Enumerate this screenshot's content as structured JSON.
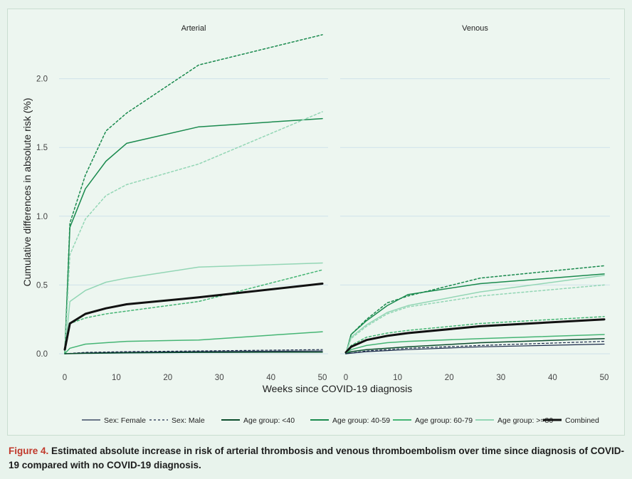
{
  "colors": {
    "background": "#edf6f0",
    "grid": "#cfe2ea",
    "female_male": "#1b2a4a",
    "age_lt40": "#0b4d2c",
    "age_40_59": "#1a8a4e",
    "age_60_79": "#45b574",
    "age_ge80": "#93d6b5",
    "combined": "#111111",
    "caption_label": "#c0392b"
  },
  "chart_data": {
    "type": "line",
    "ylabel": "Cumulative differences in absolute risk (%)",
    "xlabel": "Weeks since COVID-19 diagnosis",
    "xlim": [
      0,
      50
    ],
    "ylim": [
      0,
      2.35
    ],
    "grid": true,
    "legend_position": "bottom",
    "x_ticks": [
      "0",
      "10",
      "20",
      "30",
      "40",
      "50"
    ],
    "y_ticks": [
      "0.0",
      "0.5",
      "1.0",
      "1.5",
      "2.0"
    ],
    "legend": [
      {
        "label": "Sex: Female",
        "style": "solid",
        "color": "#1b2a4a",
        "width": 1.2
      },
      {
        "label": "Sex: Male",
        "style": "dotted",
        "color": "#1b2a4a",
        "width": 1.2
      },
      {
        "label": "Age group: <40",
        "style": "solid",
        "color": "#0b4d2c",
        "width": 2
      },
      {
        "label": "Age group: 40-59",
        "style": "solid",
        "color": "#1a8a4e",
        "width": 2
      },
      {
        "label": "Age group: 60-79",
        "style": "solid",
        "color": "#45b574",
        "width": 2
      },
      {
        "label": "Age group: >=80",
        "style": "solid",
        "color": "#93d6b5",
        "width": 2
      },
      {
        "label": "Combined",
        "style": "solid",
        "color": "#111111",
        "width": 3
      }
    ],
    "panels": [
      {
        "title": "Arterial",
        "series": [
          {
            "style": "dotted",
            "color": "#1a8a4e",
            "width": 1.5,
            "x": [
              0,
              1,
              4,
              8,
              12,
              26,
              50
            ],
            "y": [
              0,
              0.95,
              1.3,
              1.62,
              1.75,
              2.1,
              2.32
            ]
          },
          {
            "style": "solid",
            "color": "#1a8a4e",
            "width": 1.5,
            "x": [
              0,
              1,
              4,
              8,
              12,
              26,
              50
            ],
            "y": [
              0,
              0.92,
              1.2,
              1.4,
              1.53,
              1.65,
              1.71
            ]
          },
          {
            "style": "dotted",
            "color": "#93d6b5",
            "width": 1.5,
            "x": [
              0,
              1,
              4,
              8,
              12,
              26,
              50
            ],
            "y": [
              0,
              0.72,
              0.98,
              1.15,
              1.23,
              1.38,
              1.76
            ]
          },
          {
            "style": "solid",
            "color": "#93d6b5",
            "width": 1.5,
            "x": [
              0,
              1,
              4,
              8,
              12,
              26,
              50
            ],
            "y": [
              0,
              0.38,
              0.46,
              0.52,
              0.55,
              0.63,
              0.66
            ]
          },
          {
            "style": "dotted",
            "color": "#45b574",
            "width": 1.5,
            "x": [
              0,
              1,
              4,
              8,
              12,
              26,
              50
            ],
            "y": [
              0,
              0.22,
              0.26,
              0.29,
              0.31,
              0.38,
              0.61
            ]
          },
          {
            "style": "solid",
            "color": "#111111",
            "width": 3,
            "x": [
              0,
              1,
              4,
              8,
              12,
              26,
              50
            ],
            "y": [
              0.03,
              0.22,
              0.29,
              0.33,
              0.36,
              0.41,
              0.51
            ]
          },
          {
            "style": "solid",
            "color": "#45b574",
            "width": 1.5,
            "x": [
              0,
              1,
              4,
              8,
              12,
              26,
              50
            ],
            "y": [
              0,
              0.04,
              0.07,
              0.08,
              0.09,
              0.1,
              0.16
            ]
          },
          {
            "style": "dotted",
            "color": "#1b2a4a",
            "width": 1.2,
            "x": [
              0,
              4,
              12,
              26,
              50
            ],
            "y": [
              0,
              0.01,
              0.015,
              0.02,
              0.03
            ]
          },
          {
            "style": "solid",
            "color": "#1b2a4a",
            "width": 1.2,
            "x": [
              0,
              4,
              12,
              26,
              50
            ],
            "y": [
              0,
              0.005,
              0.01,
              0.015,
              0.02
            ]
          },
          {
            "style": "solid",
            "color": "#0b4d2c",
            "width": 1.5,
            "x": [
              0,
              4,
              12,
              26,
              50
            ],
            "y": [
              0,
              0.003,
              0.006,
              0.01,
              0.012
            ]
          }
        ]
      },
      {
        "title": "Venous",
        "series": [
          {
            "style": "dotted",
            "color": "#1a8a4e",
            "width": 1.5,
            "x": [
              0,
              1,
              4,
              8,
              12,
              26,
              50
            ],
            "y": [
              0,
              0.14,
              0.25,
              0.37,
              0.42,
              0.55,
              0.64
            ]
          },
          {
            "style": "solid",
            "color": "#1a8a4e",
            "width": 1.5,
            "x": [
              0,
              1,
              4,
              8,
              12,
              26,
              50
            ],
            "y": [
              0,
              0.14,
              0.24,
              0.35,
              0.43,
              0.51,
              0.58
            ]
          },
          {
            "style": "solid",
            "color": "#93d6b5",
            "width": 1.5,
            "x": [
              0,
              1,
              4,
              8,
              12,
              26,
              50
            ],
            "y": [
              0,
              0.12,
              0.21,
              0.3,
              0.35,
              0.45,
              0.57
            ]
          },
          {
            "style": "dotted",
            "color": "#93d6b5",
            "width": 1.5,
            "x": [
              0,
              1,
              4,
              8,
              12,
              26,
              50
            ],
            "y": [
              0,
              0.11,
              0.2,
              0.29,
              0.34,
              0.42,
              0.5
            ]
          },
          {
            "style": "dotted",
            "color": "#45b574",
            "width": 1.5,
            "x": [
              0,
              1,
              4,
              8,
              12,
              26,
              50
            ],
            "y": [
              0,
              0.06,
              0.12,
              0.15,
              0.17,
              0.22,
              0.27
            ]
          },
          {
            "style": "solid",
            "color": "#111111",
            "width": 3,
            "x": [
              0,
              1,
              4,
              8,
              12,
              26,
              50
            ],
            "y": [
              0.01,
              0.05,
              0.1,
              0.13,
              0.15,
              0.2,
              0.25
            ]
          },
          {
            "style": "solid",
            "color": "#45b574",
            "width": 1.5,
            "x": [
              0,
              1,
              4,
              8,
              12,
              26,
              50
            ],
            "y": [
              0,
              0.03,
              0.06,
              0.08,
              0.09,
              0.11,
              0.14
            ]
          },
          {
            "style": "solid",
            "color": "#0b4d2c",
            "width": 1.5,
            "x": [
              0,
              1,
              4,
              8,
              12,
              26,
              50
            ],
            "y": [
              0,
              0.015,
              0.03,
              0.04,
              0.05,
              0.08,
              0.11
            ]
          },
          {
            "style": "dotted",
            "color": "#1b2a4a",
            "width": 1.2,
            "x": [
              0,
              4,
              12,
              26,
              50
            ],
            "y": [
              0,
              0.02,
              0.04,
              0.06,
              0.09
            ]
          },
          {
            "style": "solid",
            "color": "#1b2a4a",
            "width": 1.2,
            "x": [
              0,
              4,
              12,
              26,
              50
            ],
            "y": [
              0,
              0.015,
              0.03,
              0.05,
              0.07
            ]
          }
        ]
      }
    ]
  },
  "caption": {
    "label": "Figure 4.",
    "text": " Estimated absolute increase in risk of arterial thrombosis and venous thromboembolism over time since diagnosis of COVID-19 compared with no COVID-19 diagnosis."
  }
}
